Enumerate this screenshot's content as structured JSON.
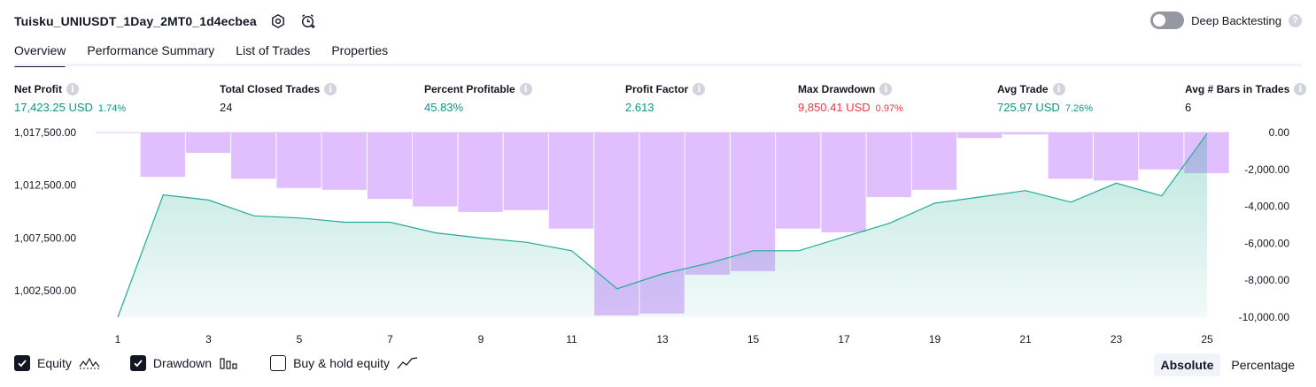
{
  "header": {
    "title": "Tuisku_UNIUSDT_1Day_2MT0_1d4ecbea",
    "icons": [
      "settings-icon",
      "alarm-add-icon"
    ]
  },
  "deep_backtesting": {
    "label": "Deep Backtesting",
    "enabled": false,
    "help": "?"
  },
  "tabs": [
    {
      "label": "Overview",
      "active": true
    },
    {
      "label": "Performance Summary",
      "active": false
    },
    {
      "label": "List of Trades",
      "active": false
    },
    {
      "label": "Properties",
      "active": false
    }
  ],
  "metrics": [
    {
      "label": "Net Profit",
      "value": "17,423.25 USD",
      "pct": "1.74%",
      "color": "green"
    },
    {
      "label": "Total Closed Trades",
      "value": "24",
      "pct": "",
      "color": "dark"
    },
    {
      "label": "Percent Profitable",
      "value": "45.83%",
      "pct": "",
      "color": "green"
    },
    {
      "label": "Profit Factor",
      "value": "2.613",
      "pct": "",
      "color": "green"
    },
    {
      "label": "Max Drawdown",
      "value": "9,850.41 USD",
      "pct": "0.97%",
      "color": "red"
    },
    {
      "label": "Avg Trade",
      "value": "725.97 USD",
      "pct": "7.26%",
      "color": "green"
    },
    {
      "label": "Avg # Bars in Trades",
      "value": "6",
      "pct": "",
      "color": "dark"
    }
  ],
  "info_glyph": "i",
  "chart_data": {
    "type": "line+bar",
    "x": [
      1,
      2,
      3,
      4,
      5,
      6,
      7,
      8,
      9,
      10,
      11,
      12,
      13,
      14,
      15,
      16,
      17,
      18,
      19,
      20,
      21,
      22,
      23,
      24,
      25
    ],
    "x_tick_labels": [
      "1",
      "3",
      "5",
      "7",
      "9",
      "11",
      "13",
      "15",
      "17",
      "19",
      "21",
      "23",
      "25"
    ],
    "series": [
      {
        "name": "Equity",
        "axis": "left",
        "values": [
          1000000,
          1011600,
          1011100,
          1009600,
          1009400,
          1009000,
          1009000,
          1008000,
          1007500,
          1007100,
          1006300,
          1002700,
          1004100,
          1005100,
          1006300,
          1006300,
          1007600,
          1008900,
          1010800,
          1011400,
          1012000,
          1010900,
          1012700,
          1011500,
          1017400
        ]
      },
      {
        "name": "Drawdown",
        "axis": "right",
        "values": [
          0,
          -2400,
          -1100,
          -2500,
          -3000,
          -3100,
          -3600,
          -4000,
          -4300,
          -4200,
          -5200,
          -9900,
          -9800,
          -7700,
          -7500,
          -5200,
          -5400,
          -3500,
          -3100,
          -300,
          -100,
          -2500,
          -2600,
          -2000,
          -2200
        ]
      }
    ],
    "left_axis": {
      "ticks": [
        1017500,
        1012500,
        1007500,
        1002500
      ],
      "tick_labels": [
        "1,017,500.00",
        "1,012,500.00",
        "1,007,500.00",
        "1,002,500.00"
      ],
      "range": [
        1000000,
        1017500
      ]
    },
    "right_axis": {
      "ticks": [
        0,
        -2000,
        -4000,
        -6000,
        -8000,
        -10000
      ],
      "tick_labels": [
        "0.00",
        "-2,000.00",
        "-4,000.00",
        "-6,000.00",
        "-8,000.00",
        "-10,000.00"
      ],
      "range": [
        -10000,
        0
      ]
    },
    "colors": {
      "equity_line": "#22ab94",
      "equity_fill": "#22ab94",
      "drawdown_bar": "#e1bfff"
    }
  },
  "legend": [
    {
      "label": "Equity",
      "checked": true,
      "glyph": "equity-glyph-icon"
    },
    {
      "label": "Drawdown",
      "checked": true,
      "glyph": "drawdown-glyph-icon"
    },
    {
      "label": "Buy & hold equity",
      "checked": false,
      "glyph": "buy-hold-glyph-icon"
    }
  ],
  "modes": [
    {
      "label": "Absolute",
      "active": true
    },
    {
      "label": "Percentage",
      "active": false
    }
  ]
}
